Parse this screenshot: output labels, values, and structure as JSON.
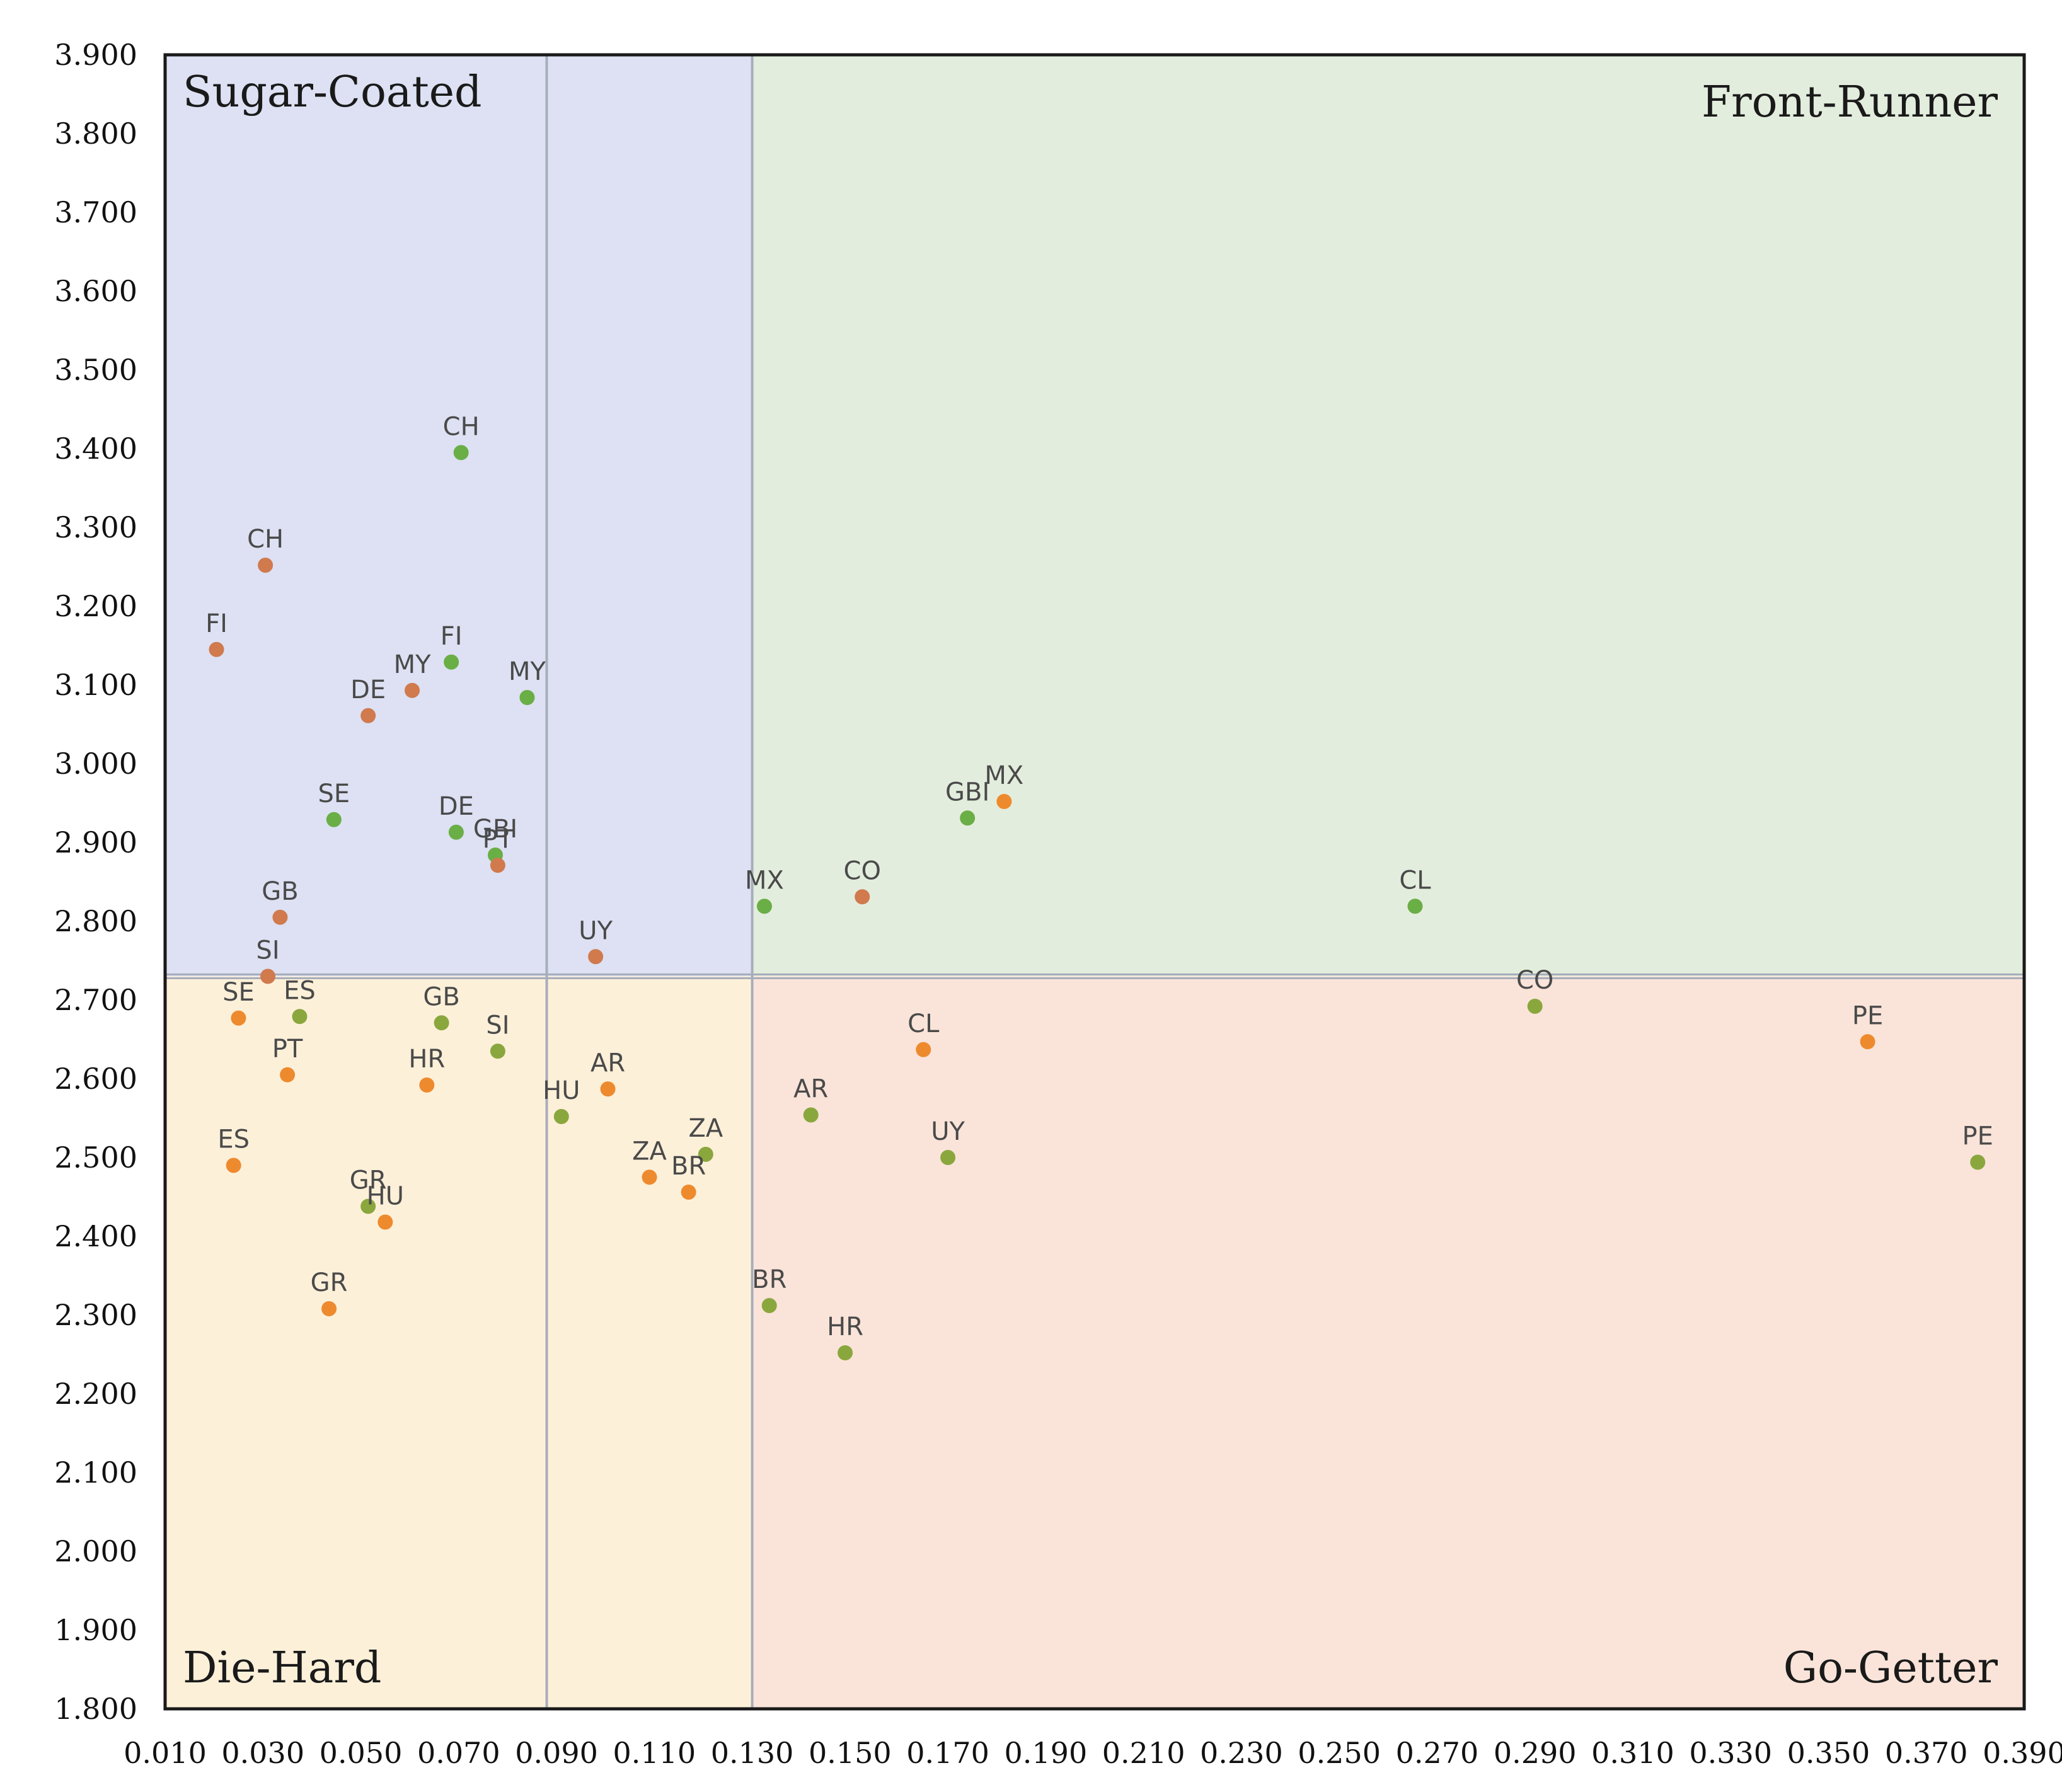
{
  "chart_data": {
    "type": "scatter",
    "title": "",
    "xlabel": "",
    "ylabel": "",
    "xlim": [
      0.01,
      0.39
    ],
    "ylim": [
      1.8,
      3.9
    ],
    "x_ticks": [
      "0.010",
      "0.030",
      "0.050",
      "0.070",
      "0.090",
      "0.110",
      "0.130",
      "0.150",
      "0.170",
      "0.190",
      "0.210",
      "0.230",
      "0.250",
      "0.270",
      "0.290",
      "0.310",
      "0.330",
      "0.350",
      "0.370",
      "0.390"
    ],
    "y_ticks": [
      "1.800",
      "1.900",
      "2.000",
      "2.100",
      "2.200",
      "2.300",
      "2.400",
      "2.500",
      "2.600",
      "2.700",
      "2.800",
      "2.900",
      "3.000",
      "3.100",
      "3.200",
      "3.300",
      "3.400",
      "3.500",
      "3.600",
      "3.700",
      "3.800",
      "3.900"
    ],
    "quadrant_split": {
      "x": 0.13,
      "y": 2.73
    },
    "inner_divider_x": 0.088,
    "quadrants": [
      {
        "name": "Sugar-Coated",
        "position": "top-left",
        "color": "#dde1f3"
      },
      {
        "name": "Front-Runner",
        "position": "top-right",
        "color": "#e3eddd"
      },
      {
        "name": "Die-Hard",
        "position": "bottom-left",
        "color": "#fdf0d9"
      },
      {
        "name": "Go-Getter",
        "position": "bottom-right",
        "color": "#fae4d9"
      }
    ],
    "colors": {
      "green": "#6aae46",
      "olive": "#8aa73e",
      "orange": "#ee8a2e",
      "brown": "#d07a4e",
      "border": "#1a1a1a",
      "divider": "#a7adbb"
    },
    "points": [
      {
        "label": "CH",
        "x": 0.0705,
        "y": 3.395,
        "color": "green"
      },
      {
        "label": "CH",
        "x": 0.0305,
        "y": 3.252,
        "color": "brown"
      },
      {
        "label": "FI",
        "x": 0.0205,
        "y": 3.145,
        "color": "brown"
      },
      {
        "label": "FI",
        "x": 0.0685,
        "y": 3.129,
        "color": "green"
      },
      {
        "label": "MY",
        "x": 0.0605,
        "y": 3.093,
        "color": "brown"
      },
      {
        "label": "MY",
        "x": 0.084,
        "y": 3.084,
        "color": "green"
      },
      {
        "label": "DE",
        "x": 0.0515,
        "y": 3.061,
        "color": "brown"
      },
      {
        "label": "SE",
        "x": 0.0445,
        "y": 2.929,
        "color": "green"
      },
      {
        "label": "DE",
        "x": 0.0695,
        "y": 2.913,
        "color": "green"
      },
      {
        "label": "GBI",
        "x": 0.0775,
        "y": 2.884,
        "color": "green"
      },
      {
        "label": "PT",
        "x": 0.078,
        "y": 2.871,
        "color": "brown"
      },
      {
        "label": "GB",
        "x": 0.0335,
        "y": 2.805,
        "color": "brown"
      },
      {
        "label": "UY",
        "x": 0.098,
        "y": 2.755,
        "color": "brown"
      },
      {
        "label": "SI",
        "x": 0.031,
        "y": 2.73,
        "color": "brown"
      },
      {
        "label": "GBI",
        "x": 0.174,
        "y": 2.931,
        "color": "green"
      },
      {
        "label": "MX",
        "x": 0.1815,
        "y": 2.952,
        "color": "orange"
      },
      {
        "label": "MX",
        "x": 0.1325,
        "y": 2.819,
        "color": "green"
      },
      {
        "label": "CO",
        "x": 0.1525,
        "y": 2.831,
        "color": "brown"
      },
      {
        "label": "CL",
        "x": 0.2655,
        "y": 2.819,
        "color": "green"
      },
      {
        "label": "ES",
        "x": 0.0375,
        "y": 2.679,
        "color": "olive"
      },
      {
        "label": "SE",
        "x": 0.025,
        "y": 2.677,
        "color": "orange"
      },
      {
        "label": "GB",
        "x": 0.0665,
        "y": 2.671,
        "color": "olive"
      },
      {
        "label": "SI",
        "x": 0.078,
        "y": 2.635,
        "color": "olive"
      },
      {
        "label": "PT",
        "x": 0.035,
        "y": 2.605,
        "color": "orange"
      },
      {
        "label": "HR",
        "x": 0.0635,
        "y": 2.592,
        "color": "orange"
      },
      {
        "label": "AR",
        "x": 0.1005,
        "y": 2.587,
        "color": "orange"
      },
      {
        "label": "HU",
        "x": 0.091,
        "y": 2.552,
        "color": "olive"
      },
      {
        "label": "ES",
        "x": 0.024,
        "y": 2.49,
        "color": "orange"
      },
      {
        "label": "ZA",
        "x": 0.1205,
        "y": 2.504,
        "color": "olive"
      },
      {
        "label": "ZA",
        "x": 0.109,
        "y": 2.475,
        "color": "orange"
      },
      {
        "label": "BR",
        "x": 0.117,
        "y": 2.456,
        "color": "orange"
      },
      {
        "label": "GR",
        "x": 0.0515,
        "y": 2.438,
        "color": "olive"
      },
      {
        "label": "HU",
        "x": 0.055,
        "y": 2.418,
        "color": "orange"
      },
      {
        "label": "GR",
        "x": 0.0435,
        "y": 2.308,
        "color": "orange"
      },
      {
        "label": "CL",
        "x": 0.165,
        "y": 2.637,
        "color": "orange"
      },
      {
        "label": "AR",
        "x": 0.142,
        "y": 2.554,
        "color": "olive"
      },
      {
        "label": "UY",
        "x": 0.17,
        "y": 2.5,
        "color": "olive"
      },
      {
        "label": "BR",
        "x": 0.1335,
        "y": 2.312,
        "color": "olive"
      },
      {
        "label": "HR",
        "x": 0.149,
        "y": 2.252,
        "color": "olive"
      },
      {
        "label": "CO",
        "x": 0.29,
        "y": 2.692,
        "color": "olive"
      },
      {
        "label": "PE",
        "x": 0.358,
        "y": 2.647,
        "color": "orange"
      },
      {
        "label": "PE",
        "x": 0.3805,
        "y": 2.494,
        "color": "olive"
      }
    ]
  }
}
